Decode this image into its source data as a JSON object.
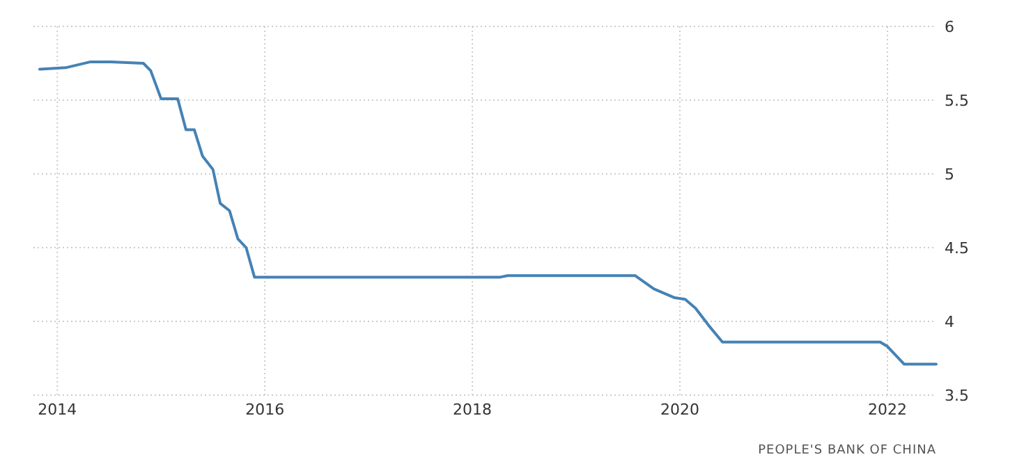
{
  "chart_data": {
    "type": "line",
    "x": [
      2013.83,
      2014.08,
      2014.32,
      2014.52,
      2014.83,
      2014.9,
      2015.0,
      2015.16,
      2015.24,
      2015.32,
      2015.4,
      2015.5,
      2015.57,
      2015.66,
      2015.74,
      2015.82,
      2015.9,
      2018.27,
      2018.34,
      2019.57,
      2019.61,
      2019.75,
      2019.95,
      2020.05,
      2020.15,
      2020.28,
      2020.41,
      2021.93,
      2022.0,
      2022.16,
      2022.47
    ],
    "series": [
      {
        "color": "#4682b4",
        "values": [
          5.71,
          5.72,
          5.76,
          5.76,
          5.75,
          5.7,
          5.51,
          5.51,
          5.3,
          5.3,
          5.12,
          5.03,
          4.8,
          4.75,
          4.56,
          4.5,
          4.3,
          4.3,
          4.31,
          4.31,
          4.29,
          4.22,
          4.16,
          4.15,
          4.09,
          3.97,
          3.86,
          3.86,
          3.83,
          3.71,
          3.71
        ]
      }
    ],
    "xlim": [
      2013.77,
      2022.47
    ],
    "xticks": [
      2014,
      2016,
      2018,
      2020,
      2022
    ],
    "ylim": [
      3.5,
      6
    ],
    "yticks": [
      3.5,
      4,
      4.5,
      5,
      5.5,
      6
    ],
    "grid": true,
    "marker": "none",
    "line_style": "solid",
    "annotations": [
      "PEOPLE'S BANK OF CHINA"
    ]
  }
}
